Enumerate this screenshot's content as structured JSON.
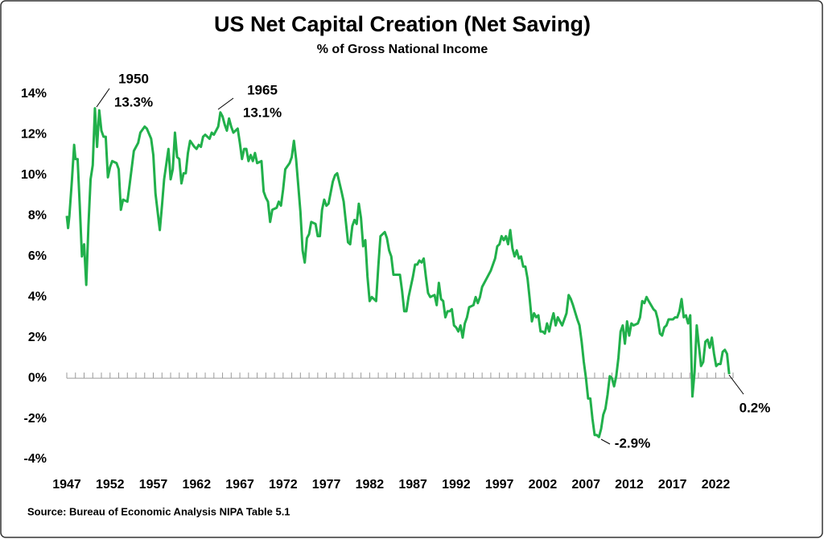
{
  "chart_data": {
    "type": "line",
    "title": "US Net Capital Creation (Net Saving)",
    "subtitle": "% of Gross National Income",
    "source": "Source: Bureau of Economic Analysis NIPA Table 5.1",
    "color": "#21b04b",
    "xlim": [
      1947,
      2024
    ],
    "xticks": [
      1947,
      1952,
      1957,
      1962,
      1967,
      1972,
      1977,
      1982,
      1987,
      1992,
      1997,
      2002,
      2007,
      2012,
      2017,
      2022
    ],
    "ylim": [
      -4,
      14
    ],
    "yticks": [
      {
        "value": -4,
        "label": "-4%"
      },
      {
        "value": -2,
        "label": "-2%"
      },
      {
        "value": 0,
        "label": "0%"
      },
      {
        "value": 2,
        "label": "2%"
      },
      {
        "value": 4,
        "label": "4%"
      },
      {
        "value": 6,
        "label": "6%"
      },
      {
        "value": 8,
        "label": "8%"
      },
      {
        "value": 10,
        "label": "10%"
      },
      {
        "value": 12,
        "label": "12%"
      },
      {
        "value": 14,
        "label": "14%"
      }
    ],
    "annotations": [
      {
        "year": "1950",
        "label": "13.3%"
      },
      {
        "year": "1965",
        "label": "13.1%"
      },
      {
        "label": "-2.9%"
      },
      {
        "label": "0.2%"
      }
    ],
    "x": [
      1947.0,
      1947.15,
      1947.3,
      1947.6,
      1947.85,
      1948.0,
      1948.25,
      1948.5,
      1948.75,
      1949.0,
      1949.25,
      1949.5,
      1949.75,
      1950.0,
      1950.25,
      1950.5,
      1950.75,
      1951.0,
      1951.25,
      1951.5,
      1951.75,
      1952.0,
      1952.25,
      1952.75,
      1953.0,
      1953.25,
      1953.5,
      1954.0,
      1954.25,
      1954.75,
      1955.25,
      1955.5,
      1956.0,
      1956.25,
      1956.75,
      1957.0,
      1957.25,
      1957.75,
      1958.0,
      1958.25,
      1958.75,
      1959.0,
      1959.25,
      1959.5,
      1959.75,
      1960.0,
      1960.25,
      1960.5,
      1960.75,
      1961.0,
      1961.25,
      1961.75,
      1962.0,
      1962.25,
      1962.5,
      1962.75,
      1963.0,
      1963.5,
      1963.75,
      1964.0,
      1964.5,
      1964.75,
      1965.0,
      1965.25,
      1965.5,
      1965.75,
      1966.0,
      1966.25,
      1966.75,
      1967.0,
      1967.25,
      1967.5,
      1967.75,
      1968.0,
      1968.25,
      1968.5,
      1968.75,
      1969.0,
      1969.5,
      1969.75,
      1970.0,
      1970.25,
      1970.5,
      1970.75,
      1971.25,
      1971.5,
      1971.75,
      1972.0,
      1972.25,
      1972.75,
      1973.0,
      1973.25,
      1973.5,
      1973.75,
      1974.0,
      1974.25,
      1974.5,
      1974.75,
      1975.0,
      1975.25,
      1975.75,
      1976.0,
      1976.25,
      1976.5,
      1976.75,
      1977.0,
      1977.25,
      1977.75,
      1978.0,
      1978.25,
      1978.75,
      1979.0,
      1979.25,
      1979.5,
      1979.75,
      1980.0,
      1980.25,
      1980.5,
      1980.75,
      1981.0,
      1981.25,
      1981.5,
      1981.75,
      1982.0,
      1982.25,
      1982.5,
      1982.75,
      1983.0,
      1983.25,
      1983.75,
      1984.0,
      1984.25,
      1984.5,
      1984.75,
      1985.25,
      1985.5,
      1985.75,
      1986.0,
      1986.25,
      1986.5,
      1986.75,
      1987.0,
      1987.25,
      1987.5,
      1987.75,
      1988.0,
      1988.25,
      1988.5,
      1988.75,
      1989.0,
      1989.5,
      1989.75,
      1990.0,
      1990.25,
      1990.5,
      1990.75,
      1991.0,
      1991.25,
      1991.5,
      1991.75,
      1992.0,
      1992.25,
      1992.5,
      1992.75,
      1993.0,
      1993.25,
      1993.5,
      1994.0,
      1994.25,
      1994.5,
      1994.75,
      1995.0,
      1995.5,
      1996.0,
      1996.5,
      1996.75,
      1997.0,
      1997.25,
      1997.5,
      1997.75,
      1998.0,
      1998.25,
      1998.5,
      1998.75,
      1999.0,
      1999.25,
      1999.5,
      1999.75,
      2000.0,
      2000.25,
      2000.5,
      2000.75,
      2001.0,
      2001.25,
      2001.5,
      2001.75,
      2002.0,
      2002.25,
      2002.5,
      2002.75,
      2003.0,
      2003.25,
      2003.5,
      2003.75,
      2004.0,
      2004.25,
      2004.75,
      2005.0,
      2005.25,
      2005.5,
      2006.0,
      2006.25,
      2006.5,
      2006.75,
      2007.0,
      2007.25,
      2007.5,
      2007.75,
      2008.0,
      2008.25,
      2008.5,
      2008.75,
      2009.0,
      2009.25,
      2009.5,
      2009.75,
      2010.0,
      2010.25,
      2010.5,
      2010.75,
      2011.0,
      2011.25,
      2011.5,
      2011.75,
      2012.0,
      2012.25,
      2012.5,
      2013.0,
      2013.25,
      2013.5,
      2013.75,
      2014.0,
      2014.25,
      2014.8,
      2015.05,
      2015.3,
      2015.55,
      2015.8,
      2016.05,
      2016.3,
      2016.55,
      2017.05,
      2017.3,
      2017.55,
      2017.8,
      2018.05,
      2018.3,
      2018.55,
      2018.8,
      2019.05,
      2019.3,
      2019.55,
      2019.8,
      2020.05,
      2020.3,
      2020.55,
      2020.8,
      2021.05,
      2021.3,
      2021.55,
      2021.8,
      2022.05,
      2022.3,
      2022.55,
      2022.8,
      2023.05,
      2023.3,
      2023.55
    ],
    "values": [
      8.0,
      7.4,
      8.0,
      9.8,
      11.5,
      10.8,
      10.8,
      8.5,
      6.0,
      6.6,
      4.6,
      7.5,
      9.8,
      10.5,
      13.3,
      11.4,
      13.2,
      12.2,
      11.9,
      11.9,
      9.9,
      10.4,
      10.7,
      10.6,
      10.3,
      8.3,
      8.8,
      8.7,
      9.5,
      11.2,
      11.6,
      12.1,
      12.4,
      12.3,
      11.8,
      11.0,
      9.1,
      7.3,
      8.5,
      9.8,
      11.3,
      9.8,
      10.3,
      12.1,
      10.9,
      10.8,
      9.6,
      10.1,
      10.1,
      11.1,
      11.7,
      11.4,
      11.3,
      11.5,
      11.4,
      11.9,
      12.0,
      11.8,
      12.1,
      12.0,
      12.4,
      13.1,
      12.9,
      12.5,
      12.2,
      12.8,
      12.4,
      12.1,
      12.3,
      11.6,
      10.8,
      11.3,
      11.3,
      10.7,
      11.0,
      10.7,
      11.1,
      10.6,
      10.7,
      9.2,
      8.9,
      8.7,
      7.7,
      8.3,
      8.4,
      8.7,
      8.5,
      9.3,
      10.3,
      10.6,
      10.9,
      11.7,
      10.8,
      9.5,
      8.2,
      6.3,
      5.7,
      6.9,
      7.1,
      7.7,
      7.6,
      7.0,
      7.0,
      8.3,
      8.8,
      8.5,
      8.6,
      9.7,
      10.0,
      10.1,
      9.2,
      8.7,
      7.7,
      6.7,
      6.6,
      7.5,
      7.8,
      7.6,
      8.6,
      7.9,
      6.5,
      6.8,
      5.0,
      3.8,
      4.0,
      3.9,
      3.8,
      5.5,
      7.0,
      7.2,
      6.9,
      6.3,
      6.0,
      5.1,
      5.1,
      5.1,
      4.3,
      3.3,
      3.3,
      4.0,
      4.5,
      5.0,
      5.6,
      5.6,
      5.8,
      5.7,
      5.9,
      5.0,
      4.2,
      4.0,
      4.1,
      3.6,
      4.7,
      3.9,
      3.8,
      3.0,
      3.3,
      3.3,
      3.4,
      2.6,
      2.5,
      2.3,
      2.6,
      2.0,
      2.7,
      3.0,
      3.5,
      3.6,
      4.0,
      3.7,
      4.0,
      4.5,
      4.9,
      5.3,
      5.9,
      6.5,
      6.6,
      7.0,
      6.8,
      7.0,
      6.6,
      7.3,
      6.4,
      6.0,
      6.3,
      5.9,
      6.0,
      5.5,
      5.5,
      4.9,
      3.9,
      2.8,
      3.2,
      3.0,
      3.1,
      2.3,
      2.3,
      2.2,
      2.7,
      2.3,
      2.8,
      3.2,
      2.6,
      3.0,
      2.8,
      2.6,
      3.2,
      4.1,
      3.9,
      3.6,
      2.9,
      2.6,
      1.8,
      0.8,
      0.0,
      -1.0,
      -1.0,
      -2.0,
      -2.8,
      -2.8,
      -2.9,
      -2.5,
      -1.8,
      -1.5,
      -0.8,
      0.1,
      0.0,
      -0.4,
      0.1,
      1.0,
      2.3,
      2.6,
      1.7,
      2.8,
      2.1,
      2.7,
      2.6,
      2.7,
      3.0,
      3.8,
      3.7,
      4.0,
      3.8,
      3.4,
      3.3,
      2.9,
      2.2,
      2.1,
      2.5,
      2.6,
      2.9,
      2.9,
      3.0,
      3.0,
      3.3,
      3.9,
      3.0,
      3.1,
      2.7,
      3.1,
      -0.9,
      0.3,
      2.6,
      1.6,
      0.6,
      0.8,
      1.8,
      1.9,
      1.5,
      2.0,
      1.2,
      0.6,
      0.7,
      0.7,
      1.3,
      1.4,
      1.2,
      0.2
    ]
  }
}
